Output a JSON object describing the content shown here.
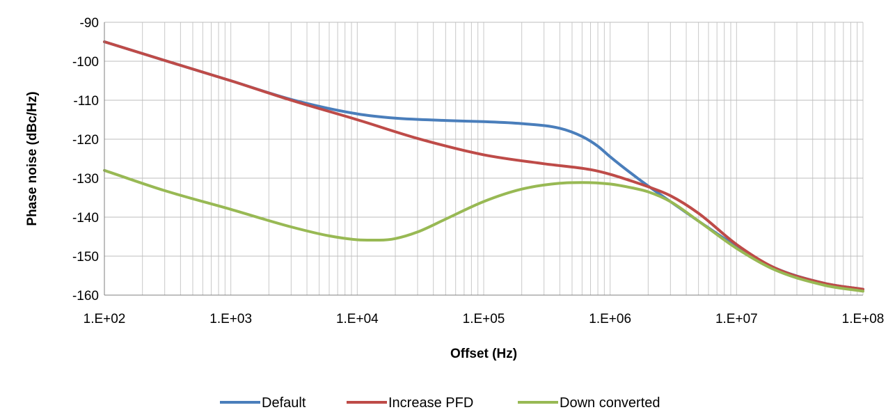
{
  "chart_data": {
    "type": "line",
    "title": "",
    "xlabel": "Offset (Hz)",
    "ylabel": "Phase noise (dBc/Hz)",
    "x_scale": "log",
    "xlim": [
      100,
      100000000
    ],
    "ylim": [
      -160,
      -90
    ],
    "x_ticks": [
      100,
      1000,
      10000,
      100000,
      1000000,
      10000000,
      100000000
    ],
    "x_tick_labels": [
      "1.E+02",
      "1.E+03",
      "1.E+04",
      "1.E+05",
      "1.E+06",
      "1.E+07",
      "1.E+08"
    ],
    "y_ticks": [
      -90,
      -100,
      -110,
      -120,
      -130,
      -140,
      -150,
      -160
    ],
    "y_tick_labels": [
      "-90",
      "-100",
      "-110",
      "-120",
      "-130",
      "-140",
      "-150",
      "-160"
    ],
    "grid": true,
    "legend_position": "bottom",
    "series": [
      {
        "name": "Default",
        "color": "#4a7ebb",
        "x": [
          100,
          300,
          1000,
          3000,
          10000,
          20000,
          50000,
          100000,
          200000,
          400000,
          600000,
          800000,
          1000000,
          1500000,
          2000000,
          3000000,
          5000000,
          10000000,
          20000000,
          50000000,
          100000000
        ],
        "y": [
          -95,
          -99.8,
          -105,
          -109.8,
          -113.5,
          -114.6,
          -115.2,
          -115.5,
          -116,
          -117.2,
          -119.3,
          -121.8,
          -124.5,
          -129,
          -132,
          -136,
          -141,
          -147.5,
          -153,
          -157,
          -158.5
        ]
      },
      {
        "name": "Increase PFD",
        "color": "#be4b48",
        "x": [
          100,
          300,
          1000,
          3000,
          10000,
          30000,
          100000,
          300000,
          700000,
          1000000,
          1500000,
          2000000,
          3000000,
          5000000,
          10000000,
          20000000,
          50000000,
          100000000
        ],
        "y": [
          -95,
          -99.8,
          -105,
          -110,
          -115,
          -119.8,
          -124,
          -126.3,
          -127.8,
          -129,
          -130.8,
          -132.2,
          -134.5,
          -139,
          -147,
          -153,
          -157,
          -158.5
        ]
      },
      {
        "name": "Down converted",
        "color": "#98b954",
        "x": [
          100,
          300,
          1000,
          3000,
          6000,
          10000,
          15000,
          20000,
          30000,
          50000,
          100000,
          200000,
          400000,
          600000,
          1000000,
          1500000,
          2000000,
          3000000,
          5000000,
          10000000,
          20000000,
          50000000,
          100000000
        ],
        "y": [
          -128,
          -133.2,
          -138,
          -142.5,
          -144.8,
          -145.8,
          -145.9,
          -145.5,
          -143.8,
          -140.5,
          -136,
          -132.8,
          -131.3,
          -131.1,
          -131.5,
          -132.5,
          -133.5,
          -136,
          -141,
          -148,
          -153.5,
          -157.5,
          -159
        ]
      }
    ]
  }
}
